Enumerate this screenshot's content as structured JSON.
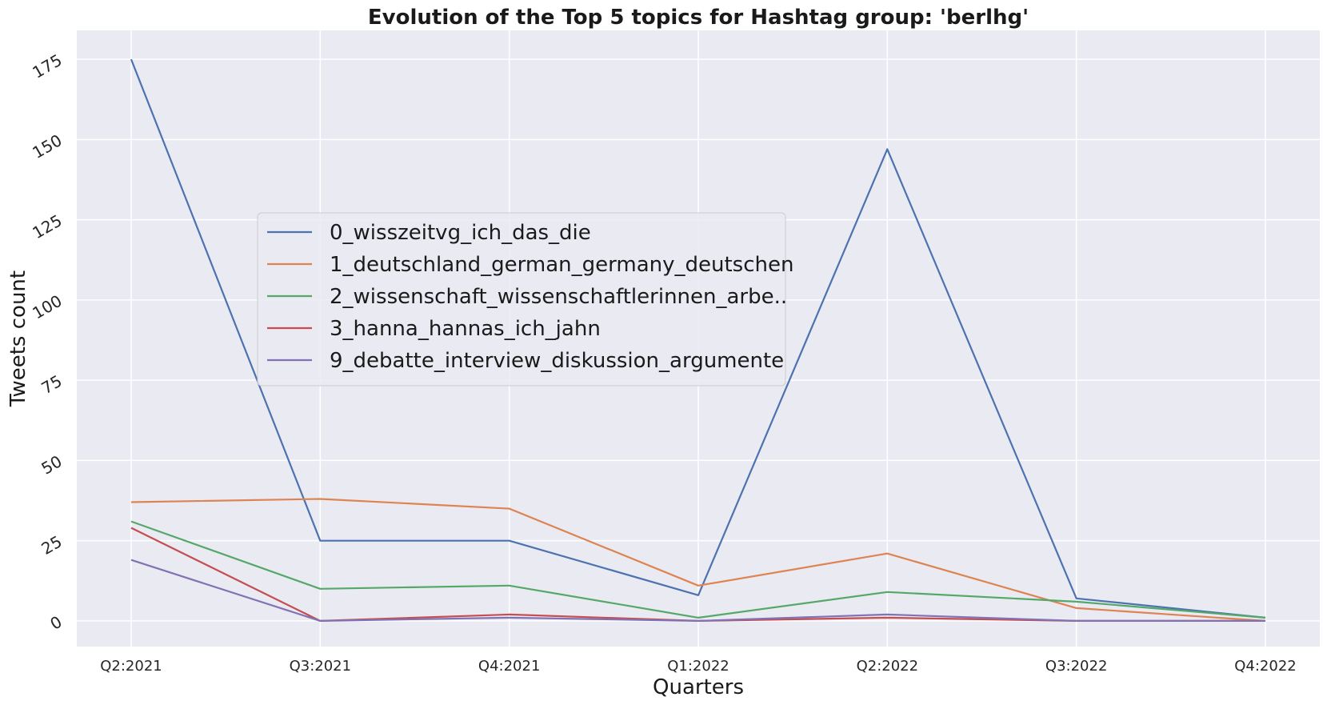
{
  "chart_data": {
    "type": "line",
    "title": "Evolution of the Top 5 topics for Hashtag group: 'berlhg'",
    "xlabel": "Quarters",
    "ylabel": "Tweets count",
    "categories": [
      "Q2:2021",
      "Q3:2021",
      "Q4:2021",
      "Q1:2022",
      "Q2:2022",
      "Q3:2022",
      "Q4:2022"
    ],
    "yticks": [
      0,
      25,
      50,
      75,
      100,
      125,
      150,
      175
    ],
    "ylim": [
      -8,
      184
    ],
    "grid": true,
    "legend_position": "center-left",
    "background": "#eaeaf2",
    "series": [
      {
        "name": "0_wisszeitvg_ich_das_die",
        "color": "#4c72b0",
        "values": [
          175,
          25,
          25,
          8,
          147,
          7,
          1
        ]
      },
      {
        "name": "1_deutschland_german_germany_deutschen",
        "color": "#dd8452",
        "values": [
          37,
          38,
          35,
          11,
          21,
          4,
          0
        ]
      },
      {
        "name": "2_wissenschaft_wissenschaftlerinnen_arbe..",
        "color": "#55a868",
        "values": [
          31,
          10,
          11,
          1,
          9,
          6,
          1
        ]
      },
      {
        "name": "3_hanna_hannas_ich_jahn",
        "color": "#c44e52",
        "values": [
          29,
          0,
          2,
          0,
          1,
          0,
          0
        ]
      },
      {
        "name": "9_debatte_interview_diskussion_argumente",
        "color": "#8172b3",
        "values": [
          19,
          0,
          1,
          0,
          2,
          0,
          0
        ]
      }
    ]
  }
}
